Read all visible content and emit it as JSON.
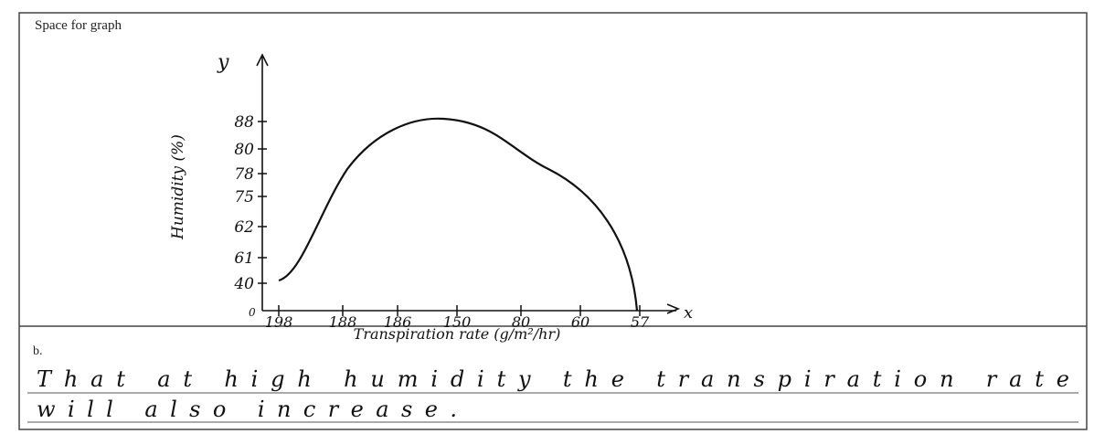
{
  "section_label": "Space for graph",
  "graph": {
    "y_axis_letter": "y",
    "x_axis_letter": "x",
    "origin": "0",
    "y_axis_title": "Humidity (%)",
    "x_axis_title": "Transpiration rate (g/m²/hr)",
    "y_tick_labels": [
      "40",
      "61",
      "62",
      "75",
      "78",
      "80",
      "88"
    ],
    "x_tick_labels": [
      "198",
      "188",
      "186",
      "150",
      "80",
      "60",
      "57"
    ]
  },
  "part_label": "b.",
  "answer_lines": [
    "That at high humidity the transpiration rate",
    "will also increase."
  ]
}
